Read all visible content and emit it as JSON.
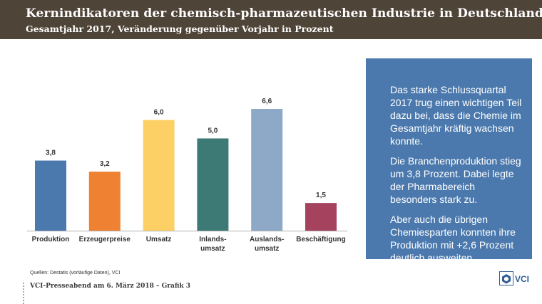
{
  "header": {
    "title": "Kernindikatoren der chemisch-pharmazeutischen Industrie in Deutschland",
    "subtitle": "Gesamtjahr 2017, Veränderung gegenüber Vorjahr in Prozent"
  },
  "chart_data": {
    "type": "bar",
    "title": "Kernindikatoren der chemisch-pharmazeutischen Industrie in Deutschland",
    "subtitle": "Gesamtjahr 2017, Veränderung gegenüber Vorjahr in Prozent",
    "categories": [
      "Produktion",
      "Erzeugerpreise",
      "Umsatz",
      "Inlands-\numsatz",
      "Auslands-\numsatz",
      "Beschäftigung"
    ],
    "values": [
      3.8,
      3.2,
      6.0,
      5.0,
      6.6,
      1.5
    ],
    "value_labels": [
      "3,8",
      "3,2",
      "6,0",
      "5,0",
      "6,6",
      "1,5"
    ],
    "colors": [
      "#4b79ad",
      "#ef8232",
      "#fdd066",
      "#3d7a76",
      "#8ea9c8",
      "#a5435f"
    ],
    "ylim": [
      0,
      6.6
    ],
    "xlabel": "",
    "ylabel": "",
    "grid": false
  },
  "info_box": {
    "paragraphs": [
      "Das starke Schlussquartal 2017 trug einen wichtigen Teil dazu bei, dass die Chemie im Gesamtjahr kräftig wachsen konnte.",
      "Die Branchenproduktion stieg um 3,8 Prozent. Dabei legte der Pharmabereich besonders stark zu.",
      "Aber auch die übrigen Chemiesparten konnten ihre Produktion mit +2,6 Prozent deutlich ausweiten."
    ]
  },
  "sources": "Quellen: Destatis (vorläufige Daten), VCI",
  "footer": "VCI-Presseabend am 6. März 2018 – Grafik 3",
  "logo": {
    "text": "VCI",
    "icon": "vci-logo-icon"
  }
}
